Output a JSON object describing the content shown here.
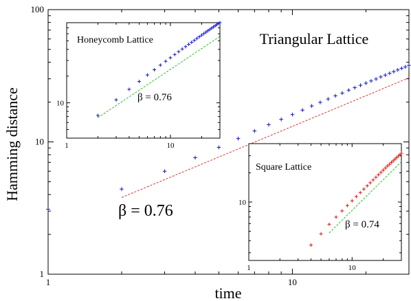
{
  "chart_data": [
    {
      "type": "scatter",
      "scale": "log-log",
      "title": "Triangular Lattice",
      "xlabel": "time",
      "ylabel": "Hamming distance",
      "xlim": [
        1,
        30
      ],
      "ylim": [
        1,
        100
      ],
      "x_ticks": [
        {
          "value": 1,
          "label": "1"
        },
        {
          "value": 10,
          "label": "10"
        }
      ],
      "y_ticks": [
        {
          "value": 1,
          "label": "1"
        },
        {
          "value": 10,
          "label": "10"
        },
        {
          "value": 100,
          "label": "100"
        }
      ],
      "annotation": "β = 0.76",
      "colors": {
        "points": "#1010d0",
        "fit": "#e03030"
      },
      "series": [
        {
          "marker": "plus",
          "x": [
            1,
            2,
            3,
            4,
            5,
            6,
            7,
            8,
            9,
            10,
            11,
            12,
            13,
            14,
            15,
            16,
            17,
            18,
            19,
            20,
            21,
            22,
            23,
            24,
            25,
            26,
            27,
            28,
            29,
            30
          ],
          "y": [
            3.1,
            4.4,
            6.0,
            7.6,
            9.1,
            10.6,
            12.1,
            13.5,
            14.8,
            16.1,
            17.4,
            18.7,
            19.9,
            21.1,
            22.3,
            23.4,
            24.6,
            25.7,
            26.8,
            27.8,
            28.9,
            29.9,
            31.0,
            32.0,
            33.0,
            34.0,
            35.0,
            36.0,
            36.9,
            37.9
          ]
        },
        {
          "style": "dashed-line",
          "x": [
            2,
            30
          ],
          "y": [
            3.8,
            30.5
          ]
        }
      ]
    },
    {
      "type": "scatter",
      "scale": "log-log",
      "title": "Honeycomb Lattice",
      "xlim": [
        1,
        30
      ],
      "ylim": [
        4,
        80
      ],
      "x_ticks": [
        {
          "value": 1,
          "label": "1"
        },
        {
          "value": 10,
          "label": "10"
        }
      ],
      "y_ticks": [
        {
          "value": 10,
          "label": "10"
        }
      ],
      "annotation": "β = 0.76",
      "colors": {
        "points": "#1010d0",
        "fit": "#20c020"
      },
      "series": [
        {
          "marker": "plus",
          "x": [
            2,
            3,
            4,
            5,
            6,
            7,
            8,
            9,
            10,
            11,
            12,
            13,
            14,
            15,
            16,
            17,
            18,
            19,
            20,
            21,
            22,
            23,
            24,
            25,
            26,
            27,
            28,
            29,
            30
          ],
          "y": [
            7.2,
            10.8,
            14.2,
            17.4,
            20.6,
            23.6,
            26.6,
            29.4,
            32.2,
            35.0,
            37.7,
            40.4,
            43.0,
            45.6,
            48.1,
            50.6,
            53.1,
            55.5,
            57.9,
            60.3,
            62.6,
            64.9,
            67.2,
            69.5,
            71.7,
            73.9,
            76.1,
            78.3,
            80.0
          ]
        },
        {
          "style": "dashed-line",
          "x": [
            2,
            30
          ],
          "y": [
            6.8,
            56.0
          ]
        }
      ]
    },
    {
      "type": "scatter",
      "scale": "log-log",
      "title": "Square Lattice",
      "xlim": [
        1,
        30
      ],
      "ylim": [
        2.5,
        40
      ],
      "x_ticks": [
        {
          "value": 1,
          "label": "1"
        },
        {
          "value": 10,
          "label": "10"
        }
      ],
      "y_ticks": [
        {
          "value": 10,
          "label": "10"
        }
      ],
      "annotation": "β = 0.74",
      "colors": {
        "points": "#e01010",
        "fit": "#20c020"
      },
      "series": [
        {
          "marker": "plus",
          "x": [
            4,
            5,
            6,
            7,
            8,
            9,
            10,
            11,
            12,
            13,
            14,
            15,
            16,
            17,
            18,
            19,
            20,
            21,
            22,
            23,
            24,
            25,
            26,
            27,
            28,
            29,
            30
          ],
          "y": [
            3.6,
            4.7,
            5.9,
            7.0,
            8.1,
            9.2,
            10.3,
            11.4,
            12.5,
            13.6,
            14.7,
            15.8,
            16.9,
            18.0,
            19.1,
            20.2,
            21.3,
            22.4,
            23.5,
            24.5,
            25.6,
            26.6,
            27.7,
            28.7,
            29.8,
            30.8,
            31.8
          ]
        },
        {
          "style": "dashed-line",
          "x": [
            6,
            30
          ],
          "y": [
            4.8,
            26.0
          ]
        }
      ]
    }
  ]
}
